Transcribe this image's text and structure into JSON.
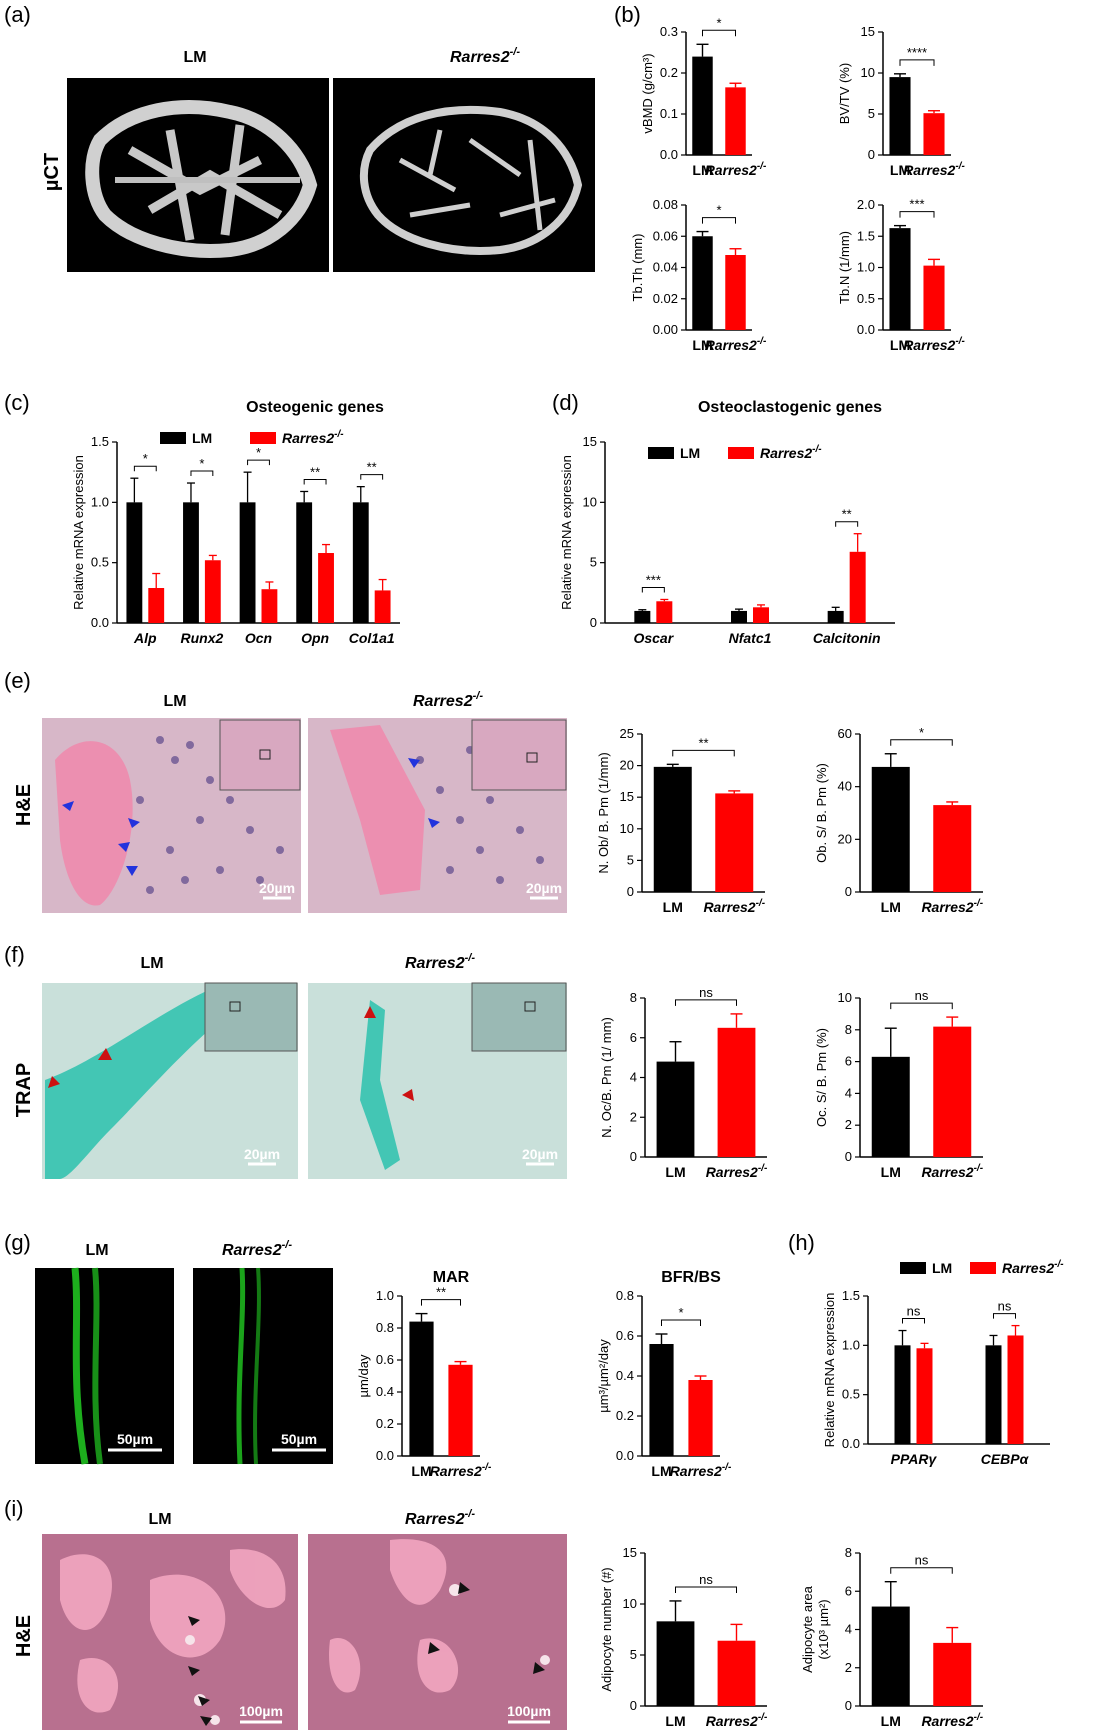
{
  "panels": {
    "a": {
      "label": "(a)",
      "row_label": "µCT",
      "left_title": "LM",
      "right_title": "Rarres2",
      "right_title_sup": "-/-"
    },
    "b": {
      "label": "(b)"
    },
    "c": {
      "label": "(c)"
    },
    "d": {
      "label": "(d)"
    },
    "e": {
      "label": "(e)",
      "row_label": "H&E",
      "left_title": "LM",
      "right_title": "Rarres2",
      "right_title_sup": "-/-",
      "scale_left": "20µm",
      "scale_right": "20µm"
    },
    "f": {
      "label": "(f)",
      "row_label": "TRAP",
      "left_title": "LM",
      "right_title": "Rarres2",
      "right_title_sup": "-/-",
      "scale_left": "20µm",
      "scale_right": "20µm"
    },
    "g": {
      "label": "(g)",
      "left_title": "LM",
      "right_title": "Rarres2",
      "right_title_sup": "-/-",
      "scale_left": "50µm",
      "scale_right": "50µm"
    },
    "h": {
      "label": "(h)"
    },
    "i": {
      "label": "(i)",
      "row_label": "H&E",
      "left_title": "LM",
      "right_title": "Rarres2",
      "right_title_sup": "-/-",
      "scale_left": "100µm",
      "scale_right": "100µm"
    }
  },
  "colors": {
    "LM": "#000000",
    "Rarres2": "#ff0000",
    "he_pink": "#e6a3b9",
    "he_bone": "#ee88aa",
    "trap_bg": "#c9e0da",
    "trap_bone": "#44c8b6",
    "fluor": "#22cc22"
  },
  "chart_data": [
    {
      "id": "b1",
      "type": "bar",
      "categories": [
        "LM",
        "Rarres2"
      ],
      "values": [
        0.24,
        0.165
      ],
      "errors": [
        0.03,
        0.01
      ],
      "ylabel": "vBMD (g/cm³)",
      "ylim": [
        0.0,
        0.3
      ],
      "yticks": [
        "0.0",
        "0.1",
        "0.2",
        "0.3"
      ],
      "sig": [
        "*"
      ]
    },
    {
      "id": "b2",
      "type": "bar",
      "categories": [
        "LM",
        "Rarres2"
      ],
      "values": [
        9.5,
        5.1
      ],
      "errors": [
        0.4,
        0.3
      ],
      "ylabel": "BV/TV (%)",
      "ylim": [
        0,
        15
      ],
      "yticks": [
        "0",
        "5",
        "10",
        "15"
      ],
      "sig": [
        "****"
      ]
    },
    {
      "id": "b3",
      "type": "bar",
      "categories": [
        "LM",
        "Rarres2"
      ],
      "values": [
        0.06,
        0.048
      ],
      "errors": [
        0.003,
        0.004
      ],
      "ylabel": "Tb.Th (mm)",
      "ylim": [
        0.0,
        0.08
      ],
      "yticks": [
        "0.00",
        "0.02",
        "0.04",
        "0.06",
        "0.08"
      ],
      "sig": [
        "*"
      ]
    },
    {
      "id": "b4",
      "type": "bar",
      "categories": [
        "LM",
        "Rarres2"
      ],
      "values": [
        1.63,
        1.03
      ],
      "errors": [
        0.04,
        0.1
      ],
      "ylabel": "Tb.N (1/mm)",
      "ylim": [
        0.0,
        2.0
      ],
      "yticks": [
        "0.0",
        "0.5",
        "1.0",
        "1.5",
        "2.0"
      ],
      "sig": [
        "***"
      ]
    },
    {
      "id": "c",
      "type": "bar",
      "title": "Osteogenic genes",
      "legend": [
        "LM",
        "Rarres2"
      ],
      "categories": [
        "Alp",
        "Runx2",
        "Ocn",
        "Opn",
        "Col1a1"
      ],
      "series": [
        {
          "name": "LM",
          "values": [
            1.0,
            1.0,
            1.0,
            1.0,
            1.0
          ],
          "errors": [
            0.2,
            0.16,
            0.25,
            0.09,
            0.13
          ]
        },
        {
          "name": "Rarres2",
          "values": [
            0.29,
            0.52,
            0.28,
            0.58,
            0.27
          ],
          "errors": [
            0.12,
            0.04,
            0.06,
            0.07,
            0.09
          ]
        }
      ],
      "ylabel": "Relative mRNA expression",
      "ylim": [
        0.0,
        1.5
      ],
      "yticks": [
        "0.0",
        "0.5",
        "1.0",
        "1.5"
      ],
      "sig": [
        "*",
        "*",
        "*",
        "**",
        "**"
      ]
    },
    {
      "id": "d",
      "type": "bar",
      "title": "Osteoclastogenic genes",
      "legend": [
        "LM",
        "Rarres2"
      ],
      "categories": [
        "Oscar",
        "Nfatc1",
        "Calcitonin"
      ],
      "series": [
        {
          "name": "LM",
          "values": [
            1.0,
            1.0,
            1.0
          ],
          "errors": [
            0.1,
            0.15,
            0.3
          ]
        },
        {
          "name": "Rarres2",
          "values": [
            1.8,
            1.3,
            5.9
          ],
          "errors": [
            0.15,
            0.2,
            1.5
          ]
        }
      ],
      "ylabel": "Relative mRNA expression",
      "ylim": [
        0,
        15
      ],
      "yticks": [
        "0",
        "5",
        "10",
        "15"
      ],
      "sig": [
        "***",
        "",
        "**"
      ]
    },
    {
      "id": "e1",
      "type": "bar",
      "categories": [
        "LM",
        "Rarres2"
      ],
      "values": [
        19.8,
        15.6
      ],
      "errors": [
        0.4,
        0.4
      ],
      "ylabel": "N. Ob/ B. Pm (1/mm)",
      "ylim": [
        0,
        25
      ],
      "yticks": [
        "0",
        "5",
        "10",
        "15",
        "20",
        "25"
      ],
      "sig": [
        "**"
      ]
    },
    {
      "id": "e2",
      "type": "bar",
      "categories": [
        "LM",
        "Rarres2"
      ],
      "values": [
        47.5,
        33
      ],
      "errors": [
        5,
        1.2
      ],
      "ylabel": "Ob. S/ B. Pm (%)",
      "ylim": [
        0,
        60
      ],
      "yticks": [
        "0",
        "20",
        "40",
        "60"
      ],
      "sig": [
        "*"
      ]
    },
    {
      "id": "f1",
      "type": "bar",
      "categories": [
        "LM",
        "Rarres2"
      ],
      "values": [
        4.8,
        6.5
      ],
      "errors": [
        1.0,
        0.7
      ],
      "ylabel": "N. Oc/B. Pm (1/ mm)",
      "ylim": [
        0,
        8
      ],
      "yticks": [
        "0",
        "2",
        "4",
        "6",
        "8"
      ],
      "sig": [
        "ns"
      ]
    },
    {
      "id": "f2",
      "type": "bar",
      "categories": [
        "LM",
        "Rarres2"
      ],
      "values": [
        6.3,
        8.2
      ],
      "errors": [
        1.8,
        0.6
      ],
      "ylabel": "Oc. S/ B. Pm (%)",
      "ylim": [
        0,
        10
      ],
      "yticks": [
        "0",
        "2",
        "4",
        "6",
        "8",
        "10"
      ],
      "sig": [
        "ns"
      ]
    },
    {
      "id": "g1",
      "type": "bar",
      "title": "MAR",
      "categories": [
        "LM",
        "Rarres2"
      ],
      "values": [
        0.84,
        0.57
      ],
      "errors": [
        0.05,
        0.02
      ],
      "ylabel": "µm/day",
      "ylim": [
        0.0,
        1.0
      ],
      "yticks": [
        "0.0",
        "0.2",
        "0.4",
        "0.6",
        "0.8",
        "1.0"
      ],
      "sig": [
        "**"
      ]
    },
    {
      "id": "g2",
      "type": "bar",
      "title": "BFR/BS",
      "categories": [
        "LM",
        "Rarres2"
      ],
      "values": [
        0.56,
        0.38
      ],
      "errors": [
        0.05,
        0.02
      ],
      "ylabel": "µm³/µm²/day",
      "ylim": [
        0.0,
        0.8
      ],
      "yticks": [
        "0.0",
        "0.2",
        "0.4",
        "0.6",
        "0.8"
      ],
      "sig": [
        "*"
      ]
    },
    {
      "id": "h",
      "type": "bar",
      "legend": [
        "LM",
        "Rarres2"
      ],
      "categories": [
        "PPARγ",
        "CEBPα"
      ],
      "series": [
        {
          "name": "LM",
          "values": [
            1.0,
            1.0
          ],
          "errors": [
            0.15,
            0.1
          ]
        },
        {
          "name": "Rarres2",
          "values": [
            0.97,
            1.1
          ],
          "errors": [
            0.05,
            0.1
          ]
        }
      ],
      "ylabel": "Relative mRNA expression",
      "ylim": [
        0.0,
        1.5
      ],
      "yticks": [
        "0.0",
        "0.5",
        "1.0",
        "1.5"
      ],
      "sig": [
        "ns",
        "ns"
      ]
    },
    {
      "id": "i1",
      "type": "bar",
      "categories": [
        "LM",
        "Rarres2"
      ],
      "values": [
        8.3,
        6.4
      ],
      "errors": [
        2.0,
        1.6
      ],
      "ylabel": "Adipocyte number (#)",
      "ylim": [
        0,
        15
      ],
      "yticks": [
        "0",
        "5",
        "10",
        "15"
      ],
      "sig": [
        "ns"
      ]
    },
    {
      "id": "i2",
      "type": "bar",
      "categories": [
        "LM",
        "Rarres2"
      ],
      "values": [
        5.2,
        3.3
      ],
      "errors": [
        1.3,
        0.8
      ],
      "ylabel": "Adipocyte area",
      "ylabel2": "(x10³ µm²)",
      "ylim": [
        0,
        8
      ],
      "yticks": [
        "0",
        "2",
        "4",
        "6",
        "8"
      ],
      "sig": [
        "ns"
      ]
    }
  ]
}
